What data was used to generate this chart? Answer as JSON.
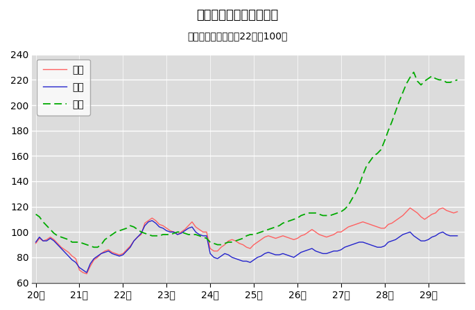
{
  "title": "鳥取県鉱工業指数の推移",
  "subtitle": "（季節調整済、平成22年＝100）",
  "title_fontsize": 13,
  "subtitle_fontsize": 10,
  "ylim": [
    60,
    240
  ],
  "yticks": [
    60,
    80,
    100,
    120,
    140,
    160,
    180,
    200,
    220,
    240
  ],
  "fig_bg_color": "#ffffff",
  "plot_bg_color": "#dcdcdc",
  "legend_labels": [
    "生産",
    "出荷",
    "在庫"
  ],
  "legend_colors": [
    "#ff6060",
    "#2222cc",
    "#00aa00"
  ],
  "x_tick_labels": [
    "20年",
    "21年",
    "22年",
    "23年",
    "24年",
    "25年",
    "26年",
    "27年",
    "28年",
    "29年"
  ],
  "production": [
    91,
    95,
    93,
    94,
    96,
    94,
    91,
    88,
    86,
    84,
    81,
    79,
    70,
    68,
    67,
    73,
    78,
    80,
    83,
    85,
    86,
    84,
    83,
    82,
    83,
    86,
    89,
    93,
    96,
    98,
    107,
    109,
    111,
    109,
    106,
    105,
    103,
    101,
    100,
    98,
    100,
    102,
    105,
    108,
    104,
    102,
    100,
    100,
    87,
    85,
    85,
    88,
    90,
    93,
    94,
    93,
    91,
    90,
    88,
    87,
    90,
    92,
    94,
    96,
    97,
    96,
    95,
    96,
    97,
    96,
    95,
    94,
    95,
    97,
    98,
    100,
    102,
    100,
    98,
    97,
    96,
    97,
    98,
    100,
    100,
    102,
    104,
    105,
    106,
    107,
    108,
    107,
    106,
    105,
    104,
    103,
    103,
    106,
    107,
    109,
    111,
    113,
    116,
    119,
    117,
    115,
    112,
    110,
    112,
    114,
    115,
    118,
    119,
    117,
    116,
    115,
    116
  ],
  "shipment": [
    92,
    96,
    93,
    93,
    95,
    93,
    90,
    87,
    84,
    81,
    78,
    76,
    72,
    70,
    68,
    75,
    79,
    81,
    83,
    84,
    85,
    83,
    82,
    81,
    82,
    85,
    88,
    93,
    96,
    99,
    105,
    108,
    109,
    107,
    104,
    103,
    101,
    100,
    100,
    98,
    99,
    101,
    103,
    104,
    100,
    98,
    97,
    97,
    83,
    80,
    79,
    81,
    83,
    82,
    80,
    79,
    78,
    77,
    77,
    76,
    78,
    80,
    81,
    83,
    84,
    83,
    82,
    82,
    83,
    82,
    81,
    80,
    82,
    84,
    85,
    86,
    87,
    85,
    84,
    83,
    83,
    84,
    85,
    85,
    86,
    88,
    89,
    90,
    91,
    92,
    92,
    91,
    90,
    89,
    88,
    88,
    89,
    92,
    93,
    94,
    96,
    98,
    99,
    100,
    97,
    95,
    93,
    93,
    94,
    96,
    97,
    99,
    100,
    98,
    97,
    97,
    97
  ],
  "inventory": [
    114,
    112,
    108,
    105,
    102,
    99,
    97,
    96,
    95,
    94,
    92,
    92,
    92,
    91,
    90,
    89,
    88,
    88,
    90,
    94,
    96,
    98,
    100,
    101,
    102,
    103,
    105,
    104,
    102,
    100,
    99,
    98,
    97,
    97,
    97,
    98,
    98,
    98,
    99,
    100,
    100,
    99,
    98,
    98,
    98,
    97,
    96,
    95,
    92,
    91,
    90,
    90,
    91,
    92,
    92,
    93,
    94,
    95,
    97,
    98,
    98,
    99,
    100,
    101,
    102,
    103,
    104,
    105,
    107,
    108,
    109,
    110,
    111,
    113,
    114,
    115,
    115,
    115,
    114,
    113,
    113,
    113,
    114,
    115,
    116,
    118,
    121,
    126,
    131,
    137,
    145,
    152,
    156,
    160,
    162,
    165,
    172,
    180,
    187,
    195,
    203,
    210,
    217,
    222,
    226,
    219,
    216,
    219,
    221,
    223,
    221,
    220,
    220,
    218,
    218,
    219,
    220
  ]
}
